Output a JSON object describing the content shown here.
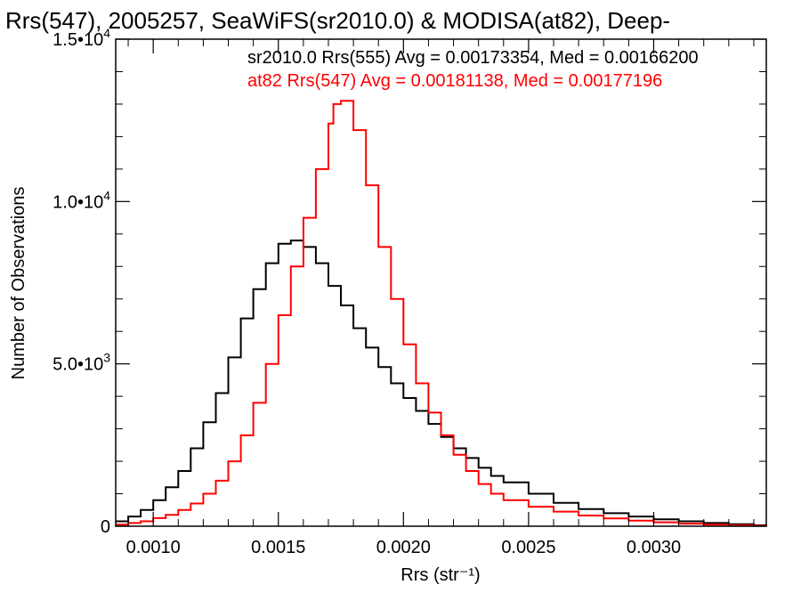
{
  "chart_data": {
    "type": "line",
    "title": "Rrs(547), 2005257, SeaWiFS(sr2010.0) & MODISA(at82), Deep-",
    "xlabel": "Rrs (str⁻¹)",
    "ylabel": "Number of Observations",
    "xlim": [
      0.00085,
      0.00345
    ],
    "ylim": [
      0,
      15000
    ],
    "x_ticks": [
      {
        "value": 0.001,
        "label": "0.0010"
      },
      {
        "value": 0.0015,
        "label": "0.0015"
      },
      {
        "value": 0.002,
        "label": "0.0020"
      },
      {
        "value": 0.0025,
        "label": "0.0025"
      },
      {
        "value": 0.003,
        "label": "0.0030"
      }
    ],
    "y_ticks": [
      {
        "value": 0,
        "mantissa": "0",
        "exponent": ""
      },
      {
        "value": 5000,
        "mantissa": "5.0•10",
        "exponent": "3"
      },
      {
        "value": 10000,
        "mantissa": "1.0•10",
        "exponent": "4"
      },
      {
        "value": 15000,
        "mantissa": "1.5•10",
        "exponent": "4"
      }
    ],
    "grid": false,
    "legend_placement": "top-right",
    "series": [
      {
        "name": "sr2010.0 Rrs(555) Avg = 0.00173354, Med = 0.00166200",
        "color": "#000000",
        "step": true,
        "x": [
          0.00085,
          0.0009,
          0.00095,
          0.001,
          0.00105,
          0.0011,
          0.00115,
          0.0012,
          0.00125,
          0.0013,
          0.00135,
          0.0014,
          0.00145,
          0.0015,
          0.00155,
          0.0016,
          0.00165,
          0.0017,
          0.00175,
          0.0018,
          0.00185,
          0.0019,
          0.00195,
          0.002,
          0.00205,
          0.0021,
          0.00215,
          0.0022,
          0.00225,
          0.0023,
          0.00235,
          0.0024,
          0.0025,
          0.0026,
          0.0027,
          0.0028,
          0.0029,
          0.003,
          0.0031,
          0.0032,
          0.0033,
          0.0034,
          0.00345
        ],
        "y": [
          150,
          300,
          500,
          800,
          1200,
          1700,
          2400,
          3200,
          4100,
          5200,
          6400,
          7300,
          8100,
          8700,
          8800,
          8600,
          8100,
          7400,
          6800,
          6100,
          5500,
          4900,
          4400,
          3950,
          3550,
          3150,
          2750,
          2400,
          2100,
          1800,
          1550,
          1350,
          1000,
          720,
          530,
          400,
          300,
          210,
          150,
          100,
          60,
          30,
          20
        ]
      },
      {
        "name": "at82 Rrs(547) Avg = 0.00181138, Med = 0.00177196",
        "color": "#ff0000",
        "step": true,
        "x": [
          0.00085,
          0.0009,
          0.00095,
          0.001,
          0.00105,
          0.0011,
          0.00115,
          0.0012,
          0.00125,
          0.0013,
          0.00135,
          0.0014,
          0.00145,
          0.0015,
          0.00155,
          0.0016,
          0.00165,
          0.0017,
          0.00172,
          0.00175,
          0.0018,
          0.00185,
          0.0019,
          0.00195,
          0.002,
          0.00205,
          0.0021,
          0.00215,
          0.0022,
          0.00225,
          0.0023,
          0.00235,
          0.0024,
          0.0025,
          0.0026,
          0.0027,
          0.0028,
          0.0029,
          0.003,
          0.0031,
          0.0032,
          0.0033,
          0.0034,
          0.00345
        ],
        "y": [
          50,
          100,
          150,
          250,
          350,
          500,
          700,
          1000,
          1400,
          2000,
          2800,
          3800,
          5000,
          6500,
          8000,
          9500,
          11000,
          12400,
          13000,
          13100,
          12200,
          10500,
          8600,
          7000,
          5600,
          4400,
          3500,
          2800,
          2200,
          1700,
          1300,
          1000,
          800,
          600,
          450,
          330,
          240,
          170,
          120,
          80,
          50,
          30,
          15,
          10
        ]
      }
    ]
  }
}
